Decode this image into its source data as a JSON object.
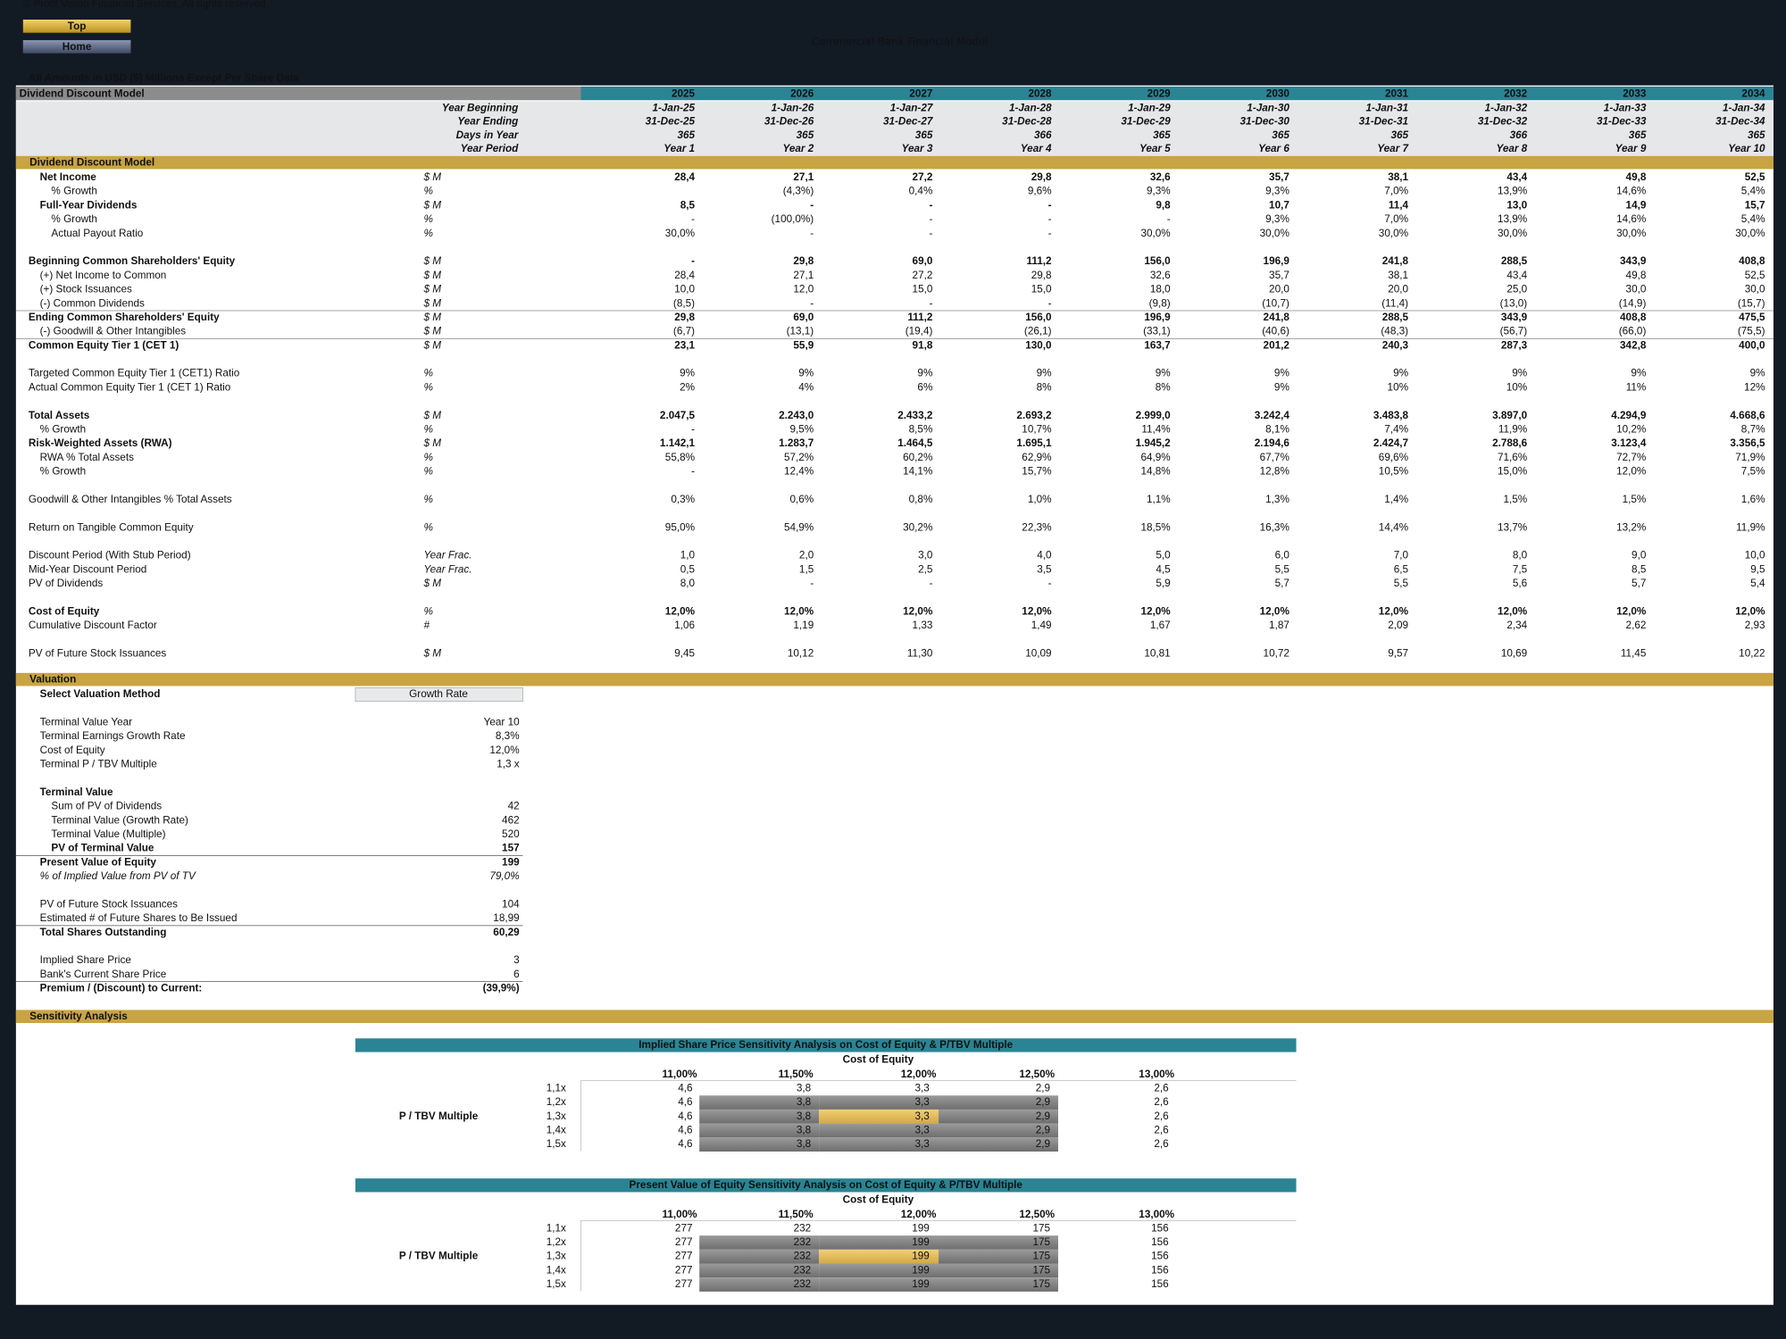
{
  "header": {
    "copyright": "© Profit Vision Financial Services. All rights reserved.",
    "buttons": [
      "Top",
      "Home"
    ],
    "title": "Commercial Bank Financial Model",
    "note": "All Amounts in  USD ($) Millions Except Per Share Data"
  },
  "ddm": {
    "title": "Dividend Discount Model",
    "years": [
      "2025",
      "2026",
      "2027",
      "2028",
      "2029",
      "2030",
      "2031",
      "2032",
      "2033",
      "2034"
    ],
    "header_rows": [
      {
        "label": "Year Beginning",
        "values": [
          "1-Jan-25",
          "1-Jan-26",
          "1-Jan-27",
          "1-Jan-28",
          "1-Jan-29",
          "1-Jan-30",
          "1-Jan-31",
          "1-Jan-32",
          "1-Jan-33",
          "1-Jan-34"
        ]
      },
      {
        "label": "Year Ending",
        "values": [
          "31-Dec-25",
          "31-Dec-26",
          "31-Dec-27",
          "31-Dec-28",
          "31-Dec-29",
          "31-Dec-30",
          "31-Dec-31",
          "31-Dec-32",
          "31-Dec-33",
          "31-Dec-34"
        ]
      },
      {
        "label": "Days in Year",
        "values": [
          "365",
          "365",
          "365",
          "366",
          "365",
          "365",
          "365",
          "366",
          "365",
          "365"
        ]
      },
      {
        "label": "Year Period",
        "values": [
          "Year 1",
          "Year 2",
          "Year 3",
          "Year 4",
          "Year 5",
          "Year 6",
          "Year 7",
          "Year 8",
          "Year 9",
          "Year 10"
        ]
      }
    ],
    "section": "Dividend Discount Model",
    "rows": [
      {
        "label": "Net Income",
        "unit": "$ M",
        "bold": true,
        "color": "#3a9a5b",
        "values": [
          "28,4",
          "27,1",
          "27,2",
          "29,8",
          "32,6",
          "35,7",
          "38,1",
          "43,4",
          "49,8",
          "52,5"
        ]
      },
      {
        "label": "% Growth",
        "unit": "%",
        "values": [
          null,
          "(4,3%)",
          "0,4%",
          "9,6%",
          "9,3%",
          "9,3%",
          "7,0%",
          "13,9%",
          "14,6%",
          "5,4%"
        ]
      },
      {
        "label": "Full-Year Dividends",
        "unit": "$ M",
        "bold": true,
        "color": "#3a9a5b",
        "values": [
          "8,5",
          "-",
          "-",
          "-",
          "9,8",
          "10,7",
          "11,4",
          "13,0",
          "14,9",
          "15,7"
        ]
      },
      {
        "label": "% Growth",
        "unit": "%",
        "values": [
          "-",
          "(100,0%)",
          "-",
          "-",
          "-",
          "9,3%",
          "7,0%",
          "13,9%",
          "14,6%",
          "5,4%"
        ]
      },
      {
        "label": "Actual Payout Ratio",
        "unit": "%",
        "values": [
          "30,0%",
          "-",
          "-",
          "-",
          "30,0%",
          "30,0%",
          "30,0%",
          "30,0%",
          "30,0%",
          "30,0%"
        ]
      },
      {
        "label": "Beginning Common Shareholders' Equity",
        "unit": "$ M",
        "bold": true,
        "values": [
          "-",
          "29,8",
          "69,0",
          "111,2",
          "156,0",
          "196,9",
          "241,8",
          "288,5",
          "343,9",
          "408,8"
        ]
      },
      {
        "label": "(+) Net Income to Common",
        "unit": "$ M",
        "values": [
          "28,4",
          "27,1",
          "27,2",
          "29,8",
          "32,6",
          "35,7",
          "38,1",
          "43,4",
          "49,8",
          "52,5"
        ]
      },
      {
        "label": "(+) Stock Issuances",
        "unit": "$ M",
        "color": "#3a9a5b",
        "values": [
          "10,0",
          "12,0",
          "15,0",
          "15,0",
          "18,0",
          "20,0",
          "20,0",
          "25,0",
          "30,0",
          "30,0"
        ]
      },
      {
        "label": "(-) Common Dividends",
        "unit": "$ M",
        "color": "#3a9a5b",
        "values": [
          "(8,5)",
          "-",
          "-",
          "-",
          "(9,8)",
          "(10,7)",
          "(11,4)",
          "(13,0)",
          "(14,9)",
          "(15,7)"
        ]
      },
      {
        "label": "Ending Common Shareholders' Equity",
        "unit": "$ M",
        "bold": true,
        "values": [
          "29,8",
          "69,0",
          "111,2",
          "156,0",
          "196,9",
          "241,8",
          "288,5",
          "343,9",
          "408,8",
          "475,5"
        ]
      },
      {
        "label": "(-) Goodwill & Other Intangibles",
        "unit": "$ M",
        "color": "#3a9a5b",
        "values": [
          "(6,7)",
          "(13,1)",
          "(19,4)",
          "(26,1)",
          "(33,1)",
          "(40,6)",
          "(48,3)",
          "(56,7)",
          "(66,0)",
          "(75,5)"
        ]
      },
      {
        "label": "Common Equity Tier 1 (CET 1)",
        "unit": "$ M",
        "bold": true,
        "values": [
          "23,1",
          "55,9",
          "91,8",
          "130,0",
          "163,7",
          "201,2",
          "240,3",
          "287,3",
          "342,8",
          "400,0"
        ]
      },
      {
        "label": "Targeted Common Equity Tier 1 (CET1) Ratio",
        "unit": "%",
        "color": "#3a9a5b",
        "values": [
          "9%",
          "9%",
          "9%",
          "9%",
          "9%",
          "9%",
          "9%",
          "9%",
          "9%",
          "9%"
        ]
      },
      {
        "label": "Actual Common Equity Tier 1 (CET 1) Ratio",
        "unit": "%",
        "color": "#3a9a5b",
        "values": [
          "2%",
          "4%",
          "6%",
          "8%",
          "8%",
          "9%",
          "10%",
          "10%",
          "11%",
          "12%"
        ]
      },
      {
        "label": "Total Assets",
        "unit": "$ M",
        "bold": true,
        "color": "#3a9a5b",
        "values": [
          "2.047,5",
          "2.243,0",
          "2.433,2",
          "2.693,2",
          "2.999,0",
          "3.242,4",
          "3.483,8",
          "3.897,0",
          "4.294,9",
          "4.668,6"
        ]
      },
      {
        "label": "% Growth",
        "unit": "%",
        "values": [
          "-",
          "9,5%",
          "8,5%",
          "10,7%",
          "11,4%",
          "8,1%",
          "7,4%",
          "11,9%",
          "10,2%",
          "8,7%"
        ]
      },
      {
        "label": "Risk-Weighted Assets (RWA)",
        "unit": "$ M",
        "bold": true,
        "color": "#3a9a5b",
        "values": [
          "1.142,1",
          "1.283,7",
          "1.464,5",
          "1.695,1",
          "1.945,2",
          "2.194,6",
          "2.424,7",
          "2.788,6",
          "3.123,4",
          "3.356,5"
        ]
      },
      {
        "label": "RWA % Total Assets",
        "unit": "%",
        "values": [
          "55,8%",
          "57,2%",
          "60,2%",
          "62,9%",
          "64,9%",
          "67,7%",
          "69,6%",
          "71,6%",
          "72,7%",
          "71,9%"
        ]
      },
      {
        "label": "% Growth",
        "unit": "%",
        "values": [
          "-",
          "12,4%",
          "14,1%",
          "15,7%",
          "14,8%",
          "12,8%",
          "10,5%",
          "15,0%",
          "12,0%",
          "7,5%"
        ]
      },
      {
        "label": "Goodwill & Other Intangibles % Total Assets",
        "unit": "%",
        "values": [
          "0,3%",
          "0,6%",
          "0,8%",
          "1,0%",
          "1,1%",
          "1,3%",
          "1,4%",
          "1,5%",
          "1,5%",
          "1,6%"
        ]
      },
      {
        "label": "Return on Tangible Common Equity",
        "unit": "%",
        "values": [
          "95,0%",
          "54,9%",
          "30,2%",
          "22,3%",
          "18,5%",
          "16,3%",
          "14,4%",
          "13,7%",
          "13,2%",
          "11,9%"
        ]
      },
      {
        "label": "Discount Period (With Stub Period)",
        "unit": "Year Frac.",
        "values": [
          "1,0",
          "2,0",
          "3,0",
          "4,0",
          "5,0",
          "6,0",
          "7,0",
          "8,0",
          "9,0",
          "10,0"
        ]
      },
      {
        "label": "Mid-Year Discount Period",
        "unit": "Year Frac.",
        "values": [
          "0,5",
          "1,5",
          "2,5",
          "3,5",
          "4,5",
          "5,5",
          "6,5",
          "7,5",
          "8,5",
          "9,5"
        ]
      },
      {
        "label": "PV of Dividends",
        "unit": "$ M",
        "values": [
          "8,0",
          "-",
          "-",
          "-",
          "5,9",
          "5,7",
          "5,5",
          "5,6",
          "5,7",
          "5,4"
        ]
      },
      {
        "label": "Cost of Equity",
        "unit": "%",
        "bold": true,
        "values": [
          "12,0%",
          "12,0%",
          "12,0%",
          "12,0%",
          "12,0%",
          "12,0%",
          "12,0%",
          "12,0%",
          "12,0%",
          "12,0%"
        ]
      },
      {
        "label": "Cumulative Discount Factor",
        "unit": "#",
        "values": [
          "1,06",
          "1,19",
          "1,33",
          "1,49",
          "1,67",
          "1,87",
          "2,09",
          "2,34",
          "2,62",
          "2,93"
        ]
      },
      {
        "label": "PV of Future Stock Issuances",
        "unit": "$ M",
        "values": [
          "9,45",
          "10,12",
          "11,30",
          "10,09",
          "10,81",
          "10,72",
          "9,57",
          "10,69",
          "11,45",
          "10,22"
        ]
      }
    ]
  },
  "valuation": {
    "section": "Valuation",
    "rows": [
      {
        "label": "Select Valuation Method",
        "value": "Growth Rate",
        "bold": true
      },
      {
        "label": "Terminal Value Year",
        "value": "Year 10"
      },
      {
        "label": "Terminal Earnings Growth Rate",
        "value": "8,3%"
      },
      {
        "label": "Cost of Equity",
        "value": "12,0%"
      },
      {
        "label": "Terminal P / TBV Multiple",
        "value": "1,3 x"
      },
      {
        "label": "Terminal Value",
        "bold": true
      },
      {
        "label": "Sum of PV of Dividends",
        "value": "42"
      },
      {
        "label": "Terminal Value (Growth Rate)",
        "value": "462"
      },
      {
        "label": "Terminal Value (Multiple)",
        "value": "520"
      },
      {
        "label": "PV of Terminal Value",
        "value": "157",
        "bold": true
      },
      {
        "label": "Present Value of Equity",
        "value": "199",
        "bold": true
      },
      {
        "label": "% of Implied Value from PV of TV",
        "value": "79,0%",
        "italic": true
      },
      {
        "label": "PV of Future Stock Issuances",
        "value": "104"
      },
      {
        "label": "Estimated # of Future Shares to Be Issued",
        "value": "18,99"
      },
      {
        "label": "Total Shares Outstanding",
        "value": "60,29",
        "bold": true
      },
      {
        "label": "Implied Share Price",
        "value": "3"
      },
      {
        "label": "Bank's Current Share Price",
        "value": "6"
      },
      {
        "label": "Premium / (Discount) to Current:",
        "value": "(39,9%)",
        "bold": true
      }
    ]
  },
  "sensitivity": {
    "section": "Sensitivity Analysis",
    "tables": [
      {
        "title": "Implied Share Price Sensitivity Analysis on Cost of Equity & P/TBV Multiple",
        "col_axis": "Cost of Equity",
        "row_axis": "P / TBV Multiple",
        "cols": [
          "11,00%",
          "11,50%",
          "12,00%",
          "12,50%",
          "13,00%"
        ],
        "rows": [
          {
            "label": "1,1x",
            "values": [
              "4,6",
              "3,8",
              "3,3",
              "2,9",
              "2,6"
            ]
          },
          {
            "label": "1,2x",
            "values": [
              "4,6",
              "3,8",
              "3,3",
              "2,9",
              "2,6"
            ]
          },
          {
            "label": "1,3x",
            "values": [
              "4,6",
              "3,8",
              "3,3",
              "2,9",
              "2,6"
            ]
          },
          {
            "label": "1,4x",
            "values": [
              "4,6",
              "3,8",
              "3,3",
              "2,9",
              "2,6"
            ]
          },
          {
            "label": "1,5x",
            "values": [
              "4,6",
              "3,8",
              "3,3",
              "2,9",
              "2,6"
            ]
          }
        ]
      },
      {
        "title": "Present Value of Equity Sensitivity Analysis on Cost of Equity & P/TBV Multiple",
        "col_axis": "Cost of Equity",
        "row_axis": "P / TBV Multiple",
        "cols": [
          "11,00%",
          "11,50%",
          "12,00%",
          "12,50%",
          "13,00%"
        ],
        "rows": [
          {
            "label": "1,1x",
            "values": [
              "277",
              "232",
              "199",
              "175",
              "156"
            ]
          },
          {
            "label": "1,2x",
            "values": [
              "277",
              "232",
              "199",
              "175",
              "156"
            ]
          },
          {
            "label": "1,3x",
            "values": [
              "277",
              "232",
              "199",
              "175",
              "156"
            ]
          },
          {
            "label": "1,4x",
            "values": [
              "277",
              "232",
              "199",
              "175",
              "156"
            ]
          },
          {
            "label": "1,5x",
            "values": [
              "277",
              "232",
              "199",
              "175",
              "156"
            ]
          }
        ]
      }
    ]
  }
}
